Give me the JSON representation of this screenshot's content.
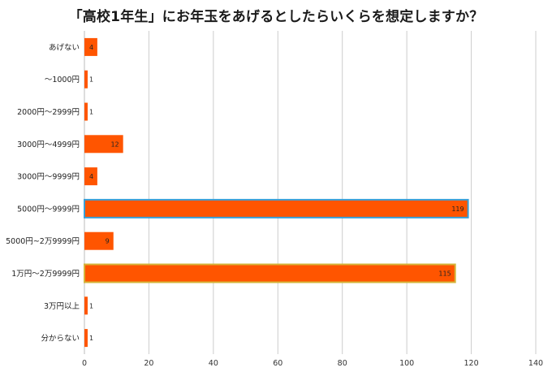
{
  "chart_data": {
    "type": "bar",
    "orientation": "horizontal",
    "title": "「高校1年生」にお年玉をあげるとしたらいくらを想定しますか？",
    "xlabel": "",
    "ylabel": "",
    "categories": [
      "あげない",
      "～1000円",
      "2000円～2999円",
      "3000円～4999円",
      "3000円～9999円",
      "5000円～9999円",
      "5000円~2万9999円",
      "1万円～2万9999円",
      "3万円以上",
      "分からない"
    ],
    "values": [
      4,
      1,
      1,
      12,
      4,
      119,
      9,
      115,
      1,
      1
    ],
    "xlim": [
      0,
      140
    ],
    "xticks": [
      0,
      20,
      40,
      60,
      80,
      100,
      120,
      140
    ],
    "grid": true,
    "bar_color": "#ff5500",
    "highlight": [
      {
        "category": "5000円～9999円",
        "outline_color": "#3aa0d8"
      },
      {
        "category": "1万円～2万9999円",
        "outline_color": "#d4b43a"
      }
    ],
    "gridline_color": "#cccccc"
  }
}
